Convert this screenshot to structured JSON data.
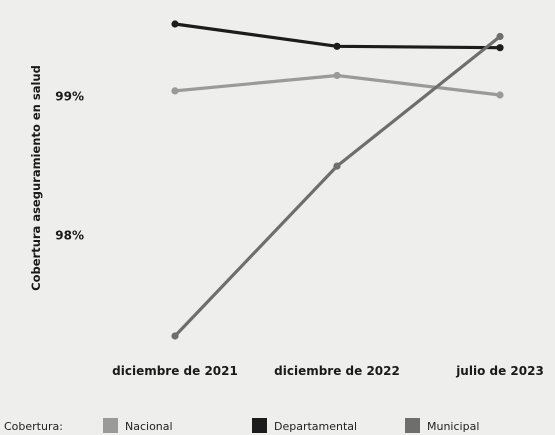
{
  "chart_data": {
    "type": "line",
    "title": "",
    "xlabel": "",
    "ylabel": "Cobertura aseguramiento en salud",
    "categories": [
      "diciembre de 2021",
      "diciembre de 2022",
      "julio de 2023"
    ],
    "y_ticks": [
      {
        "value": 98,
        "label": "98%"
      },
      {
        "value": 99,
        "label": "99%"
      }
    ],
    "ylim": [
      97.25,
      99.55
    ],
    "grid": false,
    "legend_position": "bottom",
    "legend_title": "Cobertura:",
    "series": [
      {
        "name": "Nacional",
        "color": "#9a9a9a",
        "values": [
          99.04,
          99.15,
          99.01
        ]
      },
      {
        "name": "Departamental",
        "color": "#1c1c1c",
        "values": [
          99.52,
          99.36,
          99.35
        ]
      },
      {
        "name": "Municipal",
        "color": "#6e6e6e",
        "values": [
          97.28,
          98.5,
          99.43
        ]
      }
    ]
  }
}
